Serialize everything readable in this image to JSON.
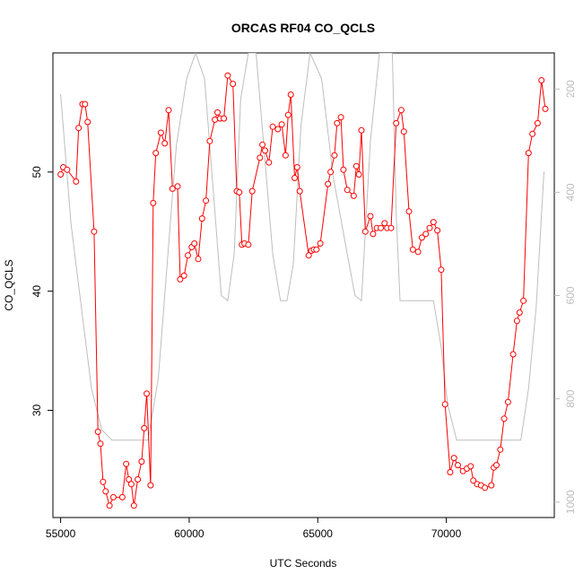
{
  "chart_data": {
    "type": "line",
    "title": "ORCAS RF04 CO_QCLS",
    "xlabel": "UTC Seconds",
    "ylabel": "CO_QCLS",
    "xlim": [
      54700,
      74200
    ],
    "ylim": [
      21,
      60
    ],
    "x_ticks": [
      55000,
      60000,
      65000,
      70000
    ],
    "y_ticks": [
      30,
      40,
      50
    ],
    "right_axis": {
      "label": "",
      "reversed": true,
      "ylim": [
        1030,
        130
      ],
      "ticks": [
        200,
        400,
        600,
        800,
        1000
      ],
      "color": "#bebebe"
    },
    "series": [
      {
        "axis": "left",
        "color": "#ff0000",
        "points_shown": true,
        "x": [
          55000,
          55100,
          55250,
          55600,
          55700,
          55850,
          55950,
          56050,
          56300,
          56450,
          56550,
          56650,
          56750,
          56900,
          57050,
          57400,
          57550,
          57650,
          57750,
          57850,
          58000,
          58150,
          58250,
          58350,
          58500,
          58600,
          58700,
          58900,
          59050,
          59200,
          59350,
          59550,
          59650,
          59800,
          59950,
          60100,
          60200,
          60350,
          60500,
          60650,
          60800,
          61000,
          61100,
          61200,
          61350,
          61500,
          61700,
          61850,
          61950,
          62050,
          62150,
          62300,
          62450,
          62750,
          62850,
          62950,
          63100,
          63250,
          63450,
          63600,
          63750,
          63850,
          63950,
          64100,
          64200,
          64300,
          64650,
          64750,
          64850,
          64950,
          65100,
          65400,
          65500,
          65650,
          65750,
          65900,
          66000,
          66150,
          66400,
          66500,
          66600,
          66700,
          66850,
          67050,
          67150,
          67300,
          67450,
          67600,
          67700,
          67850,
          68050,
          68250,
          68350,
          68550,
          68700,
          68900,
          69050,
          69200,
          69350,
          69500,
          69650,
          69800,
          69950,
          70150,
          70300,
          70450,
          70650,
          70800,
          70950,
          71050,
          71200,
          71350,
          71500,
          71750,
          71850,
          71950,
          72100,
          72250,
          72400,
          72600,
          72750,
          72850,
          73000,
          73200,
          73350,
          73550,
          73700,
          73850
        ],
        "y": [
          49.8,
          50.4,
          50.2,
          49.2,
          53.7,
          55.7,
          55.7,
          54.2,
          45.0,
          28.2,
          27.2,
          24.0,
          23.2,
          22.0,
          22.7,
          22.7,
          25.5,
          24.2,
          23.8,
          22.0,
          24.2,
          25.7,
          28.5,
          31.4,
          23.7,
          47.4,
          51.6,
          53.3,
          52.4,
          55.2,
          48.6,
          48.8,
          41.0,
          41.3,
          43.0,
          43.7,
          44.0,
          42.7,
          46.1,
          47.6,
          52.6,
          54.4,
          55.0,
          54.5,
          54.5,
          58.1,
          57.4,
          48.4,
          48.3,
          43.9,
          44.0,
          43.9,
          48.4,
          51.2,
          52.3,
          51.8,
          50.8,
          53.8,
          53.6,
          54.0,
          51.4,
          54.8,
          56.5,
          49.5,
          50.4,
          48.4,
          43.0,
          43.4,
          43.5,
          43.5,
          44.0,
          49.0,
          50.0,
          51.4,
          54.1,
          54.6,
          50.2,
          48.5,
          48.0,
          50.5,
          49.8,
          53.5,
          45.0,
          46.3,
          44.8,
          45.3,
          45.3,
          45.7,
          45.3,
          45.3,
          54.1,
          55.2,
          53.4,
          46.7,
          43.5,
          43.3,
          44.5,
          44.8,
          45.3,
          45.8,
          45.1,
          41.8,
          30.5,
          24.8,
          26.0,
          25.4,
          24.9,
          25.1,
          25.3,
          24.1,
          23.8,
          23.7,
          23.5,
          23.7,
          25.2,
          25.4,
          26.7,
          29.3,
          30.7,
          34.7,
          37.5,
          38.2,
          39.2,
          51.6,
          53.2,
          54.1,
          57.7,
          55.3
        ]
      },
      {
        "axis": "right",
        "color": "#bebebe",
        "points_shown": false,
        "x": [
          55000,
          55400,
          55800,
          56200,
          56600,
          57000,
          57800,
          58400,
          58800,
          59500,
          59900,
          60250,
          60600,
          61250,
          61500,
          61750,
          62000,
          62300,
          62600,
          63250,
          63550,
          63800,
          64050,
          64350,
          64700,
          65150,
          65600,
          66150,
          66450,
          66700,
          67050,
          67400,
          67650,
          67900,
          68050,
          68200,
          68350,
          69000,
          69500,
          69800,
          70050,
          70400,
          71000,
          71700,
          72500,
          72900,
          73200,
          73500,
          73800
        ],
        "y": [
          210,
          460,
          620,
          780,
          860,
          880,
          880,
          880,
          760,
          310,
          180,
          130,
          180,
          600,
          610,
          520,
          220,
          130,
          130,
          520,
          610,
          610,
          540,
          270,
          130,
          180,
          370,
          520,
          600,
          610,
          300,
          130,
          130,
          130,
          440,
          610,
          610,
          610,
          610,
          700,
          810,
          880,
          880,
          880,
          880,
          880,
          780,
          620,
          360
        ]
      }
    ]
  }
}
